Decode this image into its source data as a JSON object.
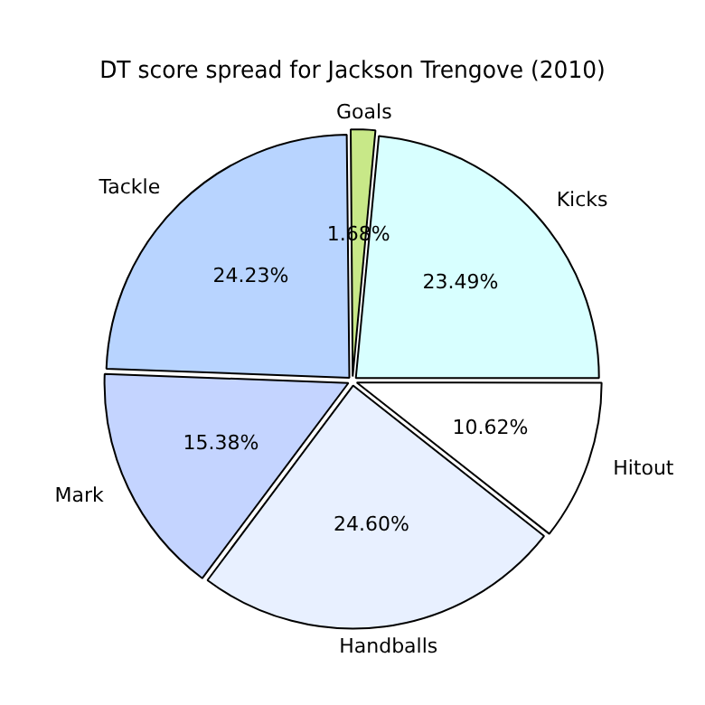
{
  "chart_data": {
    "type": "pie",
    "title": "DT score spread for Jackson Trengove (2010)",
    "categories": [
      "Hitout",
      "Handballs",
      "Mark",
      "Tackle",
      "Goals",
      "Kicks"
    ],
    "values": [
      10.62,
      24.6,
      15.38,
      24.23,
      1.68,
      23.49
    ],
    "colors": [
      "#ffffff",
      "#e8f0ff",
      "#c4d4ff",
      "#b8d4ff",
      "#c8e888",
      "#d8ffff"
    ],
    "value_labels": [
      "10.62%",
      "24.60%",
      "15.38%",
      "24.23%",
      "1.68%",
      "23.49%"
    ],
    "legend": false
  }
}
